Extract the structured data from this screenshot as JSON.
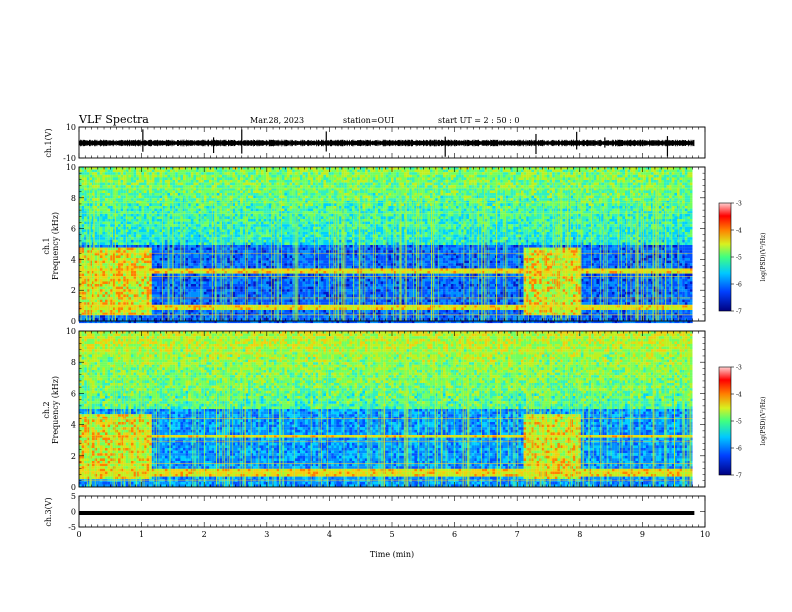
{
  "header": {
    "title": "VLF Spectra",
    "date": "Mar.28, 2023",
    "station": "station=OUI",
    "start_ut": "start  UT =  2 : 50 : 0"
  },
  "colors": {
    "low": "#00008a",
    "mid_low": "#0050ff",
    "mid": "#22e3ff",
    "mid_high": "#6cf23a",
    "high": "#f2e41d",
    "peak": "#ff1a1a",
    "max": "#ffd0d0"
  },
  "chart_data": [
    {
      "type": "line",
      "name": "ch1-waveform",
      "ylabel": "ch.1(V)",
      "ylim": [
        -10,
        10
      ],
      "yticks": [
        "10",
        "-10"
      ],
      "xlim": [
        0,
        10
      ],
      "grid": false,
      "baseline_value": 0,
      "spike_times": [
        1.02,
        2.15,
        2.6,
        3.95,
        5.85,
        7.3,
        7.95,
        8.4,
        9.4
      ]
    },
    {
      "type": "heatmap",
      "name": "ch1-spectrogram",
      "ylabel_line1": "ch.1",
      "ylabel_line2": "Frequency (kHz)",
      "ylim": [
        0,
        10
      ],
      "yticks": [
        "0",
        "2",
        "4",
        "6",
        "8",
        "10"
      ],
      "xlim": [
        0,
        10
      ],
      "data_end_time": 9.8,
      "colorbar": {
        "min": -7,
        "max": -3,
        "ticks": [
          "-3",
          "-4",
          "-5",
          "-6",
          "-7"
        ],
        "label": "log(PSD)(V²/Hz)"
      },
      "enhancement_intervals": [
        [
          0,
          1.15
        ],
        [
          7.1,
          8.0
        ]
      ]
    },
    {
      "type": "heatmap",
      "name": "ch2-spectrogram",
      "ylabel_line1": "ch.2",
      "ylabel_line2": "Frequency (kHz)",
      "ylim": [
        0,
        10
      ],
      "yticks": [
        "0",
        "2",
        "4",
        "6",
        "8",
        "10"
      ],
      "xlim": [
        0,
        10
      ],
      "data_end_time": 9.8,
      "colorbar": {
        "min": -7,
        "max": -3,
        "ticks": [
          "-3",
          "-4",
          "-5",
          "-6",
          "-7"
        ],
        "label": "log(PSD)(V²/Hz)"
      },
      "enhancement_intervals": [
        [
          0,
          1.15
        ],
        [
          7.1,
          8.0
        ]
      ]
    },
    {
      "type": "line",
      "name": "ch3-waveform",
      "ylabel": "ch.3(V)",
      "ylim": [
        -5,
        5
      ],
      "yticks": [
        "5",
        "0",
        "-5"
      ],
      "xlim": [
        0,
        10
      ],
      "constant_value": -0.5,
      "xlabel": "Time  (min)",
      "xticks": [
        "0",
        "1",
        "2",
        "3",
        "4",
        "5",
        "6",
        "7",
        "8",
        "9",
        "10"
      ]
    }
  ]
}
